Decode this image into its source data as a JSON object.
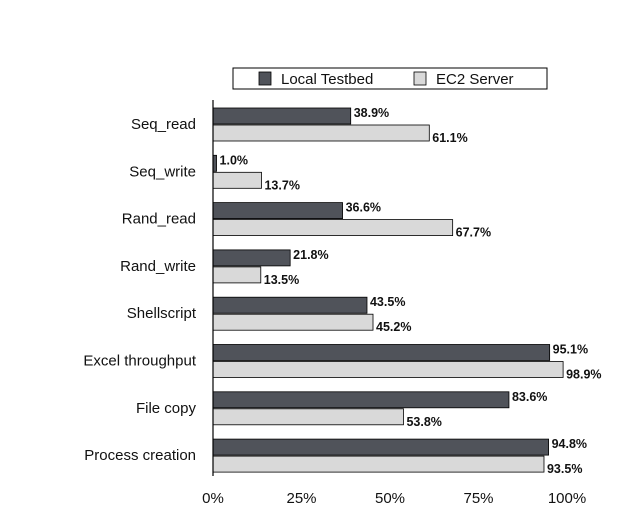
{
  "chart_data": {
    "type": "bar",
    "orientation": "horizontal",
    "categories": [
      "Seq_read",
      "Seq_write",
      "Rand_read",
      "Rand_write",
      "Shellscript",
      "Excel throughput",
      "File copy",
      "Process creation"
    ],
    "series": [
      {
        "name": "Local Testbed",
        "color": "#50535a",
        "values": [
          38.9,
          1.0,
          36.6,
          21.8,
          43.5,
          95.1,
          83.6,
          94.8
        ],
        "labels": [
          "38.9%",
          "1.0%",
          "36.6%",
          "21.8%",
          "43.5%",
          "95.1%",
          "83.6%",
          "94.8%"
        ]
      },
      {
        "name": "EC2 Server",
        "color": "#d9d9d9",
        "values": [
          61.1,
          13.7,
          67.7,
          13.5,
          45.2,
          98.9,
          53.8,
          93.5
        ],
        "labels": [
          "61.1%",
          "13.7%",
          "67.7%",
          "13.5%",
          "45.2%",
          "98.9%",
          "53.8%",
          "93.5%"
        ]
      }
    ],
    "xlim": [
      0,
      100
    ],
    "xticks": [
      "0%",
      "25%",
      "50%",
      "75%",
      "100%"
    ],
    "legend": "top",
    "grid": false
  }
}
